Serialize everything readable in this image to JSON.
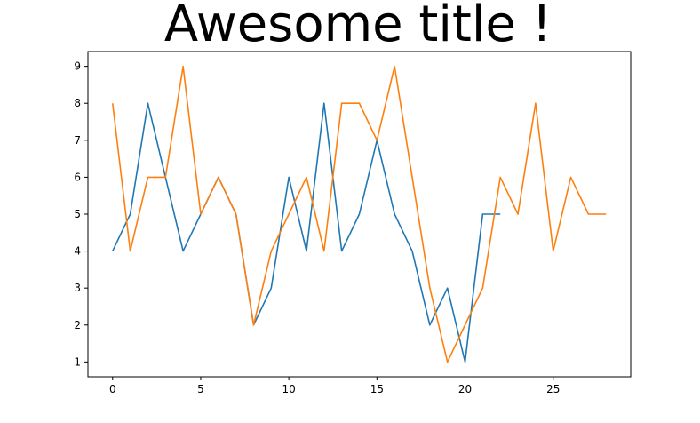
{
  "chart_data": {
    "type": "line",
    "title": "Awesome title !",
    "xlabel": "",
    "ylabel": "",
    "xlim": [
      -1.4,
      29.4
    ],
    "ylim": [
      0.6,
      9.4
    ],
    "xticks": [
      0,
      5,
      10,
      15,
      20,
      25
    ],
    "yticks": [
      1,
      2,
      3,
      4,
      5,
      6,
      7,
      8,
      9
    ],
    "grid": false,
    "legend": "none",
    "series": [
      {
        "color": "#1f77b4",
        "x": [
          0,
          1,
          2,
          3,
          4,
          5,
          6,
          7,
          8,
          9,
          10,
          11,
          12,
          13,
          14,
          15,
          16,
          17,
          18,
          19,
          20,
          21,
          22
        ],
        "values": [
          4,
          5,
          8,
          6,
          4,
          5,
          6,
          5,
          2,
          3,
          6,
          4,
          8,
          4,
          5,
          7,
          5,
          4,
          2,
          3,
          1,
          5,
          5
        ]
      },
      {
        "color": "#ff7f0e",
        "x": [
          0,
          1,
          2,
          3,
          4,
          5,
          6,
          7,
          8,
          9,
          10,
          11,
          12,
          13,
          14,
          15,
          16,
          17,
          18,
          19,
          20,
          21,
          22,
          23,
          24,
          25,
          26,
          27,
          28
        ],
        "values": [
          8,
          4,
          6,
          6,
          9,
          5,
          6,
          5,
          2,
          4,
          5,
          6,
          4,
          8,
          8,
          7,
          9,
          6,
          3,
          1,
          2,
          3,
          6,
          5,
          8,
          4,
          6,
          5,
          5
        ]
      }
    ]
  }
}
